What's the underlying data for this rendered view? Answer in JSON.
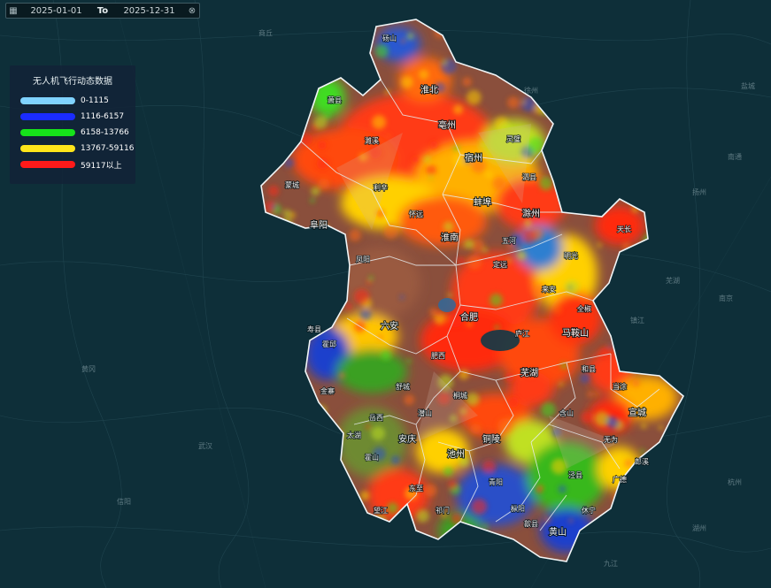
{
  "date_range": {
    "start": "2025-01-01",
    "separator": "To",
    "end": "2025-12-31",
    "calendar_icon": "calendar-icon",
    "clear_icon": "clear-icon"
  },
  "legend": {
    "title": "无人机飞行动态数据",
    "items": [
      {
        "label": "0-1115",
        "color": "#7fd3ff"
      },
      {
        "label": "1116-6157",
        "color": "#1a2cff"
      },
      {
        "label": "6158-13766",
        "color": "#16e21a"
      },
      {
        "label": "13767-59116",
        "color": "#ffe51a"
      },
      {
        "label": "59117以上",
        "color": "#ff1a1a"
      }
    ]
  },
  "cities": [
    "淮北",
    "亳州",
    "宿州",
    "蚌埠",
    "阜阳",
    "淮南",
    "滁州",
    "六安",
    "合肥",
    "马鞍山",
    "芜湖",
    "宣城",
    "铜陵",
    "池州",
    "安庆",
    "黄山"
  ],
  "counties": [
    "萧县",
    "砀山",
    "濉溪",
    "灵璧",
    "泗县",
    "利辛",
    "蒙城",
    "怀远",
    "五河",
    "明光",
    "天长",
    "来安",
    "全椒",
    "定远",
    "凤阳",
    "寿县",
    "霍邱",
    "金寨",
    "霍山",
    "舒城",
    "肥西",
    "庐江",
    "无为",
    "含山",
    "和县",
    "当涂",
    "郎溪",
    "广德",
    "泾县",
    "青阳",
    "东至",
    "望江",
    "太湖",
    "岳西",
    "潜山",
    "桐城",
    "枞阳",
    "歙县",
    "休宁",
    "祁门"
  ],
  "basemap_places": [
    "南京",
    "杭州",
    "武汉",
    "徐州",
    "盐城",
    "商丘",
    "信阳",
    "九江",
    "芜湖",
    "扬州",
    "镇江",
    "南通",
    "湖州",
    "黄冈"
  ]
}
